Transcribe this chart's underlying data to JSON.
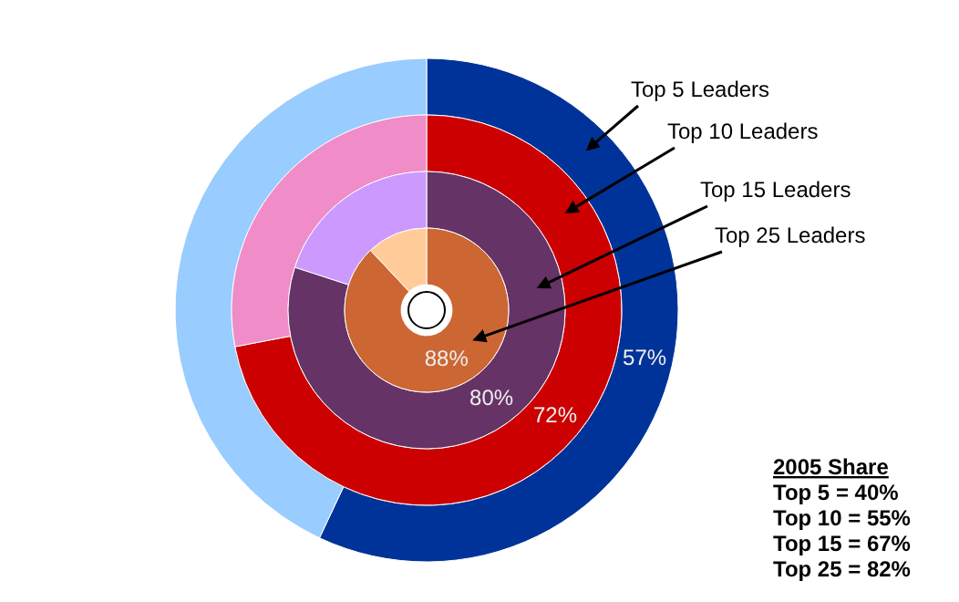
{
  "chart_data": [
    {
      "type": "donut",
      "title": "Top 5 Leaders",
      "categories": [
        null,
        null
      ],
      "values": [
        57,
        43
      ],
      "colors": [
        "#003399",
        "#99ccff"
      ],
      "value_labels": [
        "57%",
        null
      ]
    },
    {
      "type": "donut",
      "title": "Top 10 Leaders",
      "categories": [
        null,
        null
      ],
      "values": [
        72,
        28
      ],
      "colors": [
        "#cc0000",
        "#f08cc8"
      ],
      "value_labels": [
        "72%",
        null
      ]
    },
    {
      "type": "donut",
      "title": "Top 15 Leaders",
      "categories": [
        null,
        null
      ],
      "values": [
        80,
        20
      ],
      "colors": [
        "#663366",
        "#cc99ff"
      ],
      "value_labels": [
        "80%",
        null
      ]
    },
    {
      "type": "donut",
      "title": "Top 25 Leaders",
      "categories": [
        null,
        null
      ],
      "values": [
        88,
        12
      ],
      "colors": [
        "#cc6633",
        "#ffcc99"
      ],
      "value_labels": [
        "88%",
        null
      ]
    },
    {
      "type": "other",
      "title": "2005 Share",
      "annotations": [
        "Top 5 = 40%",
        "Top 10 = 55%",
        "Top 15 = 67%",
        "Top 25 = 82%"
      ]
    }
  ]
}
